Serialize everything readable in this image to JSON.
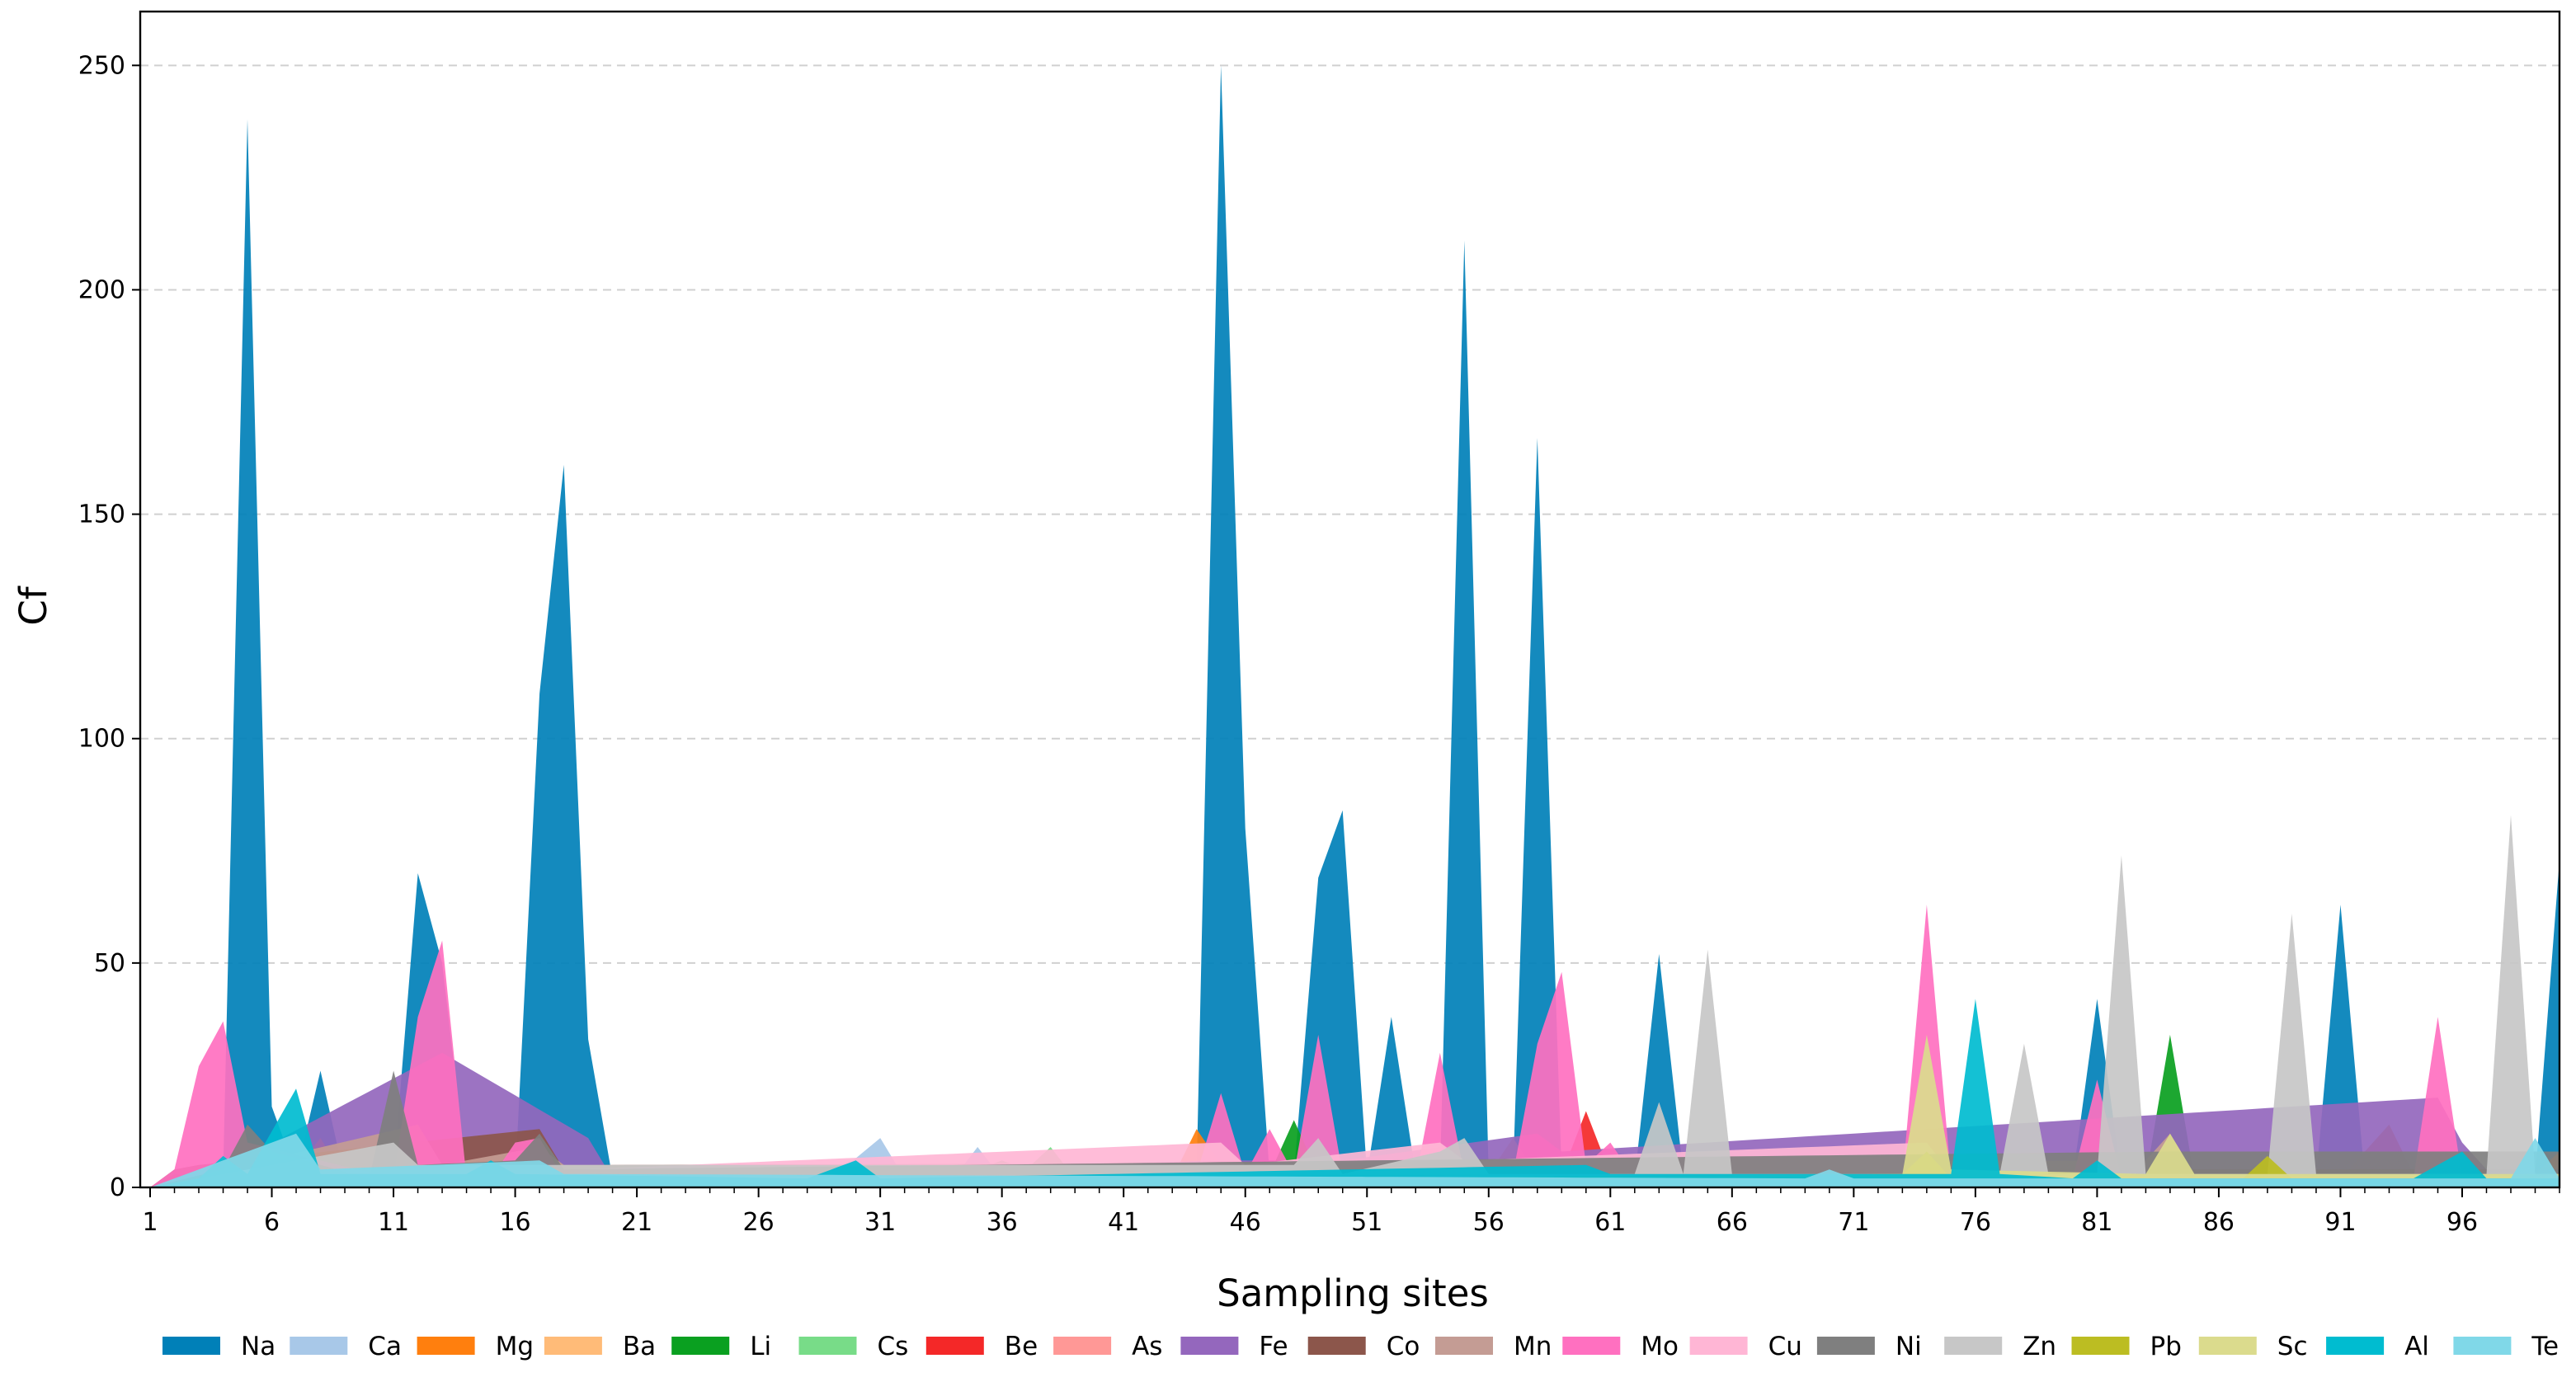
{
  "chart_data": {
    "type": "area",
    "title": "",
    "xlabel": "Sampling sites",
    "ylabel": "Cf",
    "xlim": [
      1,
      100
    ],
    "ylim": [
      0,
      262
    ],
    "x_ticks": [
      1,
      6,
      11,
      16,
      21,
      26,
      31,
      36,
      41,
      46,
      51,
      56,
      61,
      66,
      71,
      76,
      81,
      86,
      91,
      96
    ],
    "y_ticks": [
      0,
      50,
      100,
      150,
      200,
      250
    ],
    "grid": "horizontal dashed",
    "legend_position": "bottom",
    "colors": {
      "Na": "#0080b8",
      "Ca": "#a8c8e8",
      "Mg": "#ff7f0e",
      "Ba": "#ffbb78",
      "Li": "#0aa020",
      "Cs": "#78dc88",
      "Be": "#f42828",
      "As": "#ff9896",
      "Fe": "#9467bd",
      "Co": "#8c564b",
      "Mn": "#c49c94",
      "Mo": "#ff70c0",
      "Cu": "#ffb6d5",
      "Ni": "#7f7f7f",
      "Zn": "#c7c7c7",
      "Pb": "#bcbd22",
      "Sc": "#dbdb8d",
      "Al": "#00bcd0",
      "Te": "#80d8e8"
    },
    "series": [
      {
        "name": "Na",
        "points": [
          [
            1,
            0
          ],
          [
            2,
            3
          ],
          [
            3,
            2
          ],
          [
            4,
            3
          ],
          [
            5,
            238
          ],
          [
            6,
            18
          ],
          [
            7,
            3
          ],
          [
            8,
            26
          ],
          [
            9,
            2
          ],
          [
            10,
            2
          ],
          [
            11,
            3
          ],
          [
            12,
            70
          ],
          [
            13,
            50
          ],
          [
            14,
            3
          ],
          [
            15,
            3
          ],
          [
            16,
            2
          ],
          [
            17,
            110
          ],
          [
            18,
            161
          ],
          [
            19,
            33
          ],
          [
            20,
            2
          ],
          [
            22,
            2
          ],
          [
            44,
            3
          ],
          [
            45,
            250
          ],
          [
            46,
            80
          ],
          [
            47,
            3
          ],
          [
            48,
            3
          ],
          [
            49,
            69
          ],
          [
            50,
            84
          ],
          [
            51,
            3
          ],
          [
            52,
            38
          ],
          [
            53,
            3
          ],
          [
            54,
            3
          ],
          [
            55,
            211
          ],
          [
            56,
            3
          ],
          [
            57,
            3
          ],
          [
            58,
            167
          ],
          [
            59,
            3
          ],
          [
            62,
            2
          ],
          [
            63,
            52
          ],
          [
            64,
            3
          ],
          [
            80,
            2
          ],
          [
            81,
            42
          ],
          [
            82,
            2
          ],
          [
            90,
            2
          ],
          [
            91,
            63
          ],
          [
            92,
            2
          ],
          [
            99,
            2
          ],
          [
            100,
            73
          ]
        ]
      },
      {
        "name": "Ca",
        "points": [
          [
            1,
            0
          ],
          [
            5,
            6
          ],
          [
            29,
            2
          ],
          [
            31,
            11
          ],
          [
            32,
            2
          ],
          [
            33,
            4
          ],
          [
            34,
            2
          ],
          [
            35,
            9
          ],
          [
            36,
            2
          ],
          [
            42,
            2
          ],
          [
            70,
            2
          ],
          [
            72,
            4
          ],
          [
            73,
            2
          ]
        ]
      },
      {
        "name": "Mg",
        "points": [
          [
            1,
            0
          ],
          [
            7,
            4
          ],
          [
            8,
            11
          ],
          [
            9,
            2
          ],
          [
            43,
            2
          ],
          [
            44,
            13
          ],
          [
            45,
            5
          ],
          [
            91,
            2
          ],
          [
            93,
            14
          ],
          [
            94,
            3
          ],
          [
            99,
            3
          ],
          [
            100,
            8
          ]
        ]
      },
      {
        "name": "Ba",
        "points": [
          [
            1,
            0
          ],
          [
            8,
            8
          ],
          [
            9,
            2
          ],
          [
            28,
            2
          ],
          [
            29,
            4
          ],
          [
            30,
            2
          ],
          [
            56,
            3
          ],
          [
            57,
            11
          ],
          [
            58,
            3
          ]
        ]
      },
      {
        "name": "Li",
        "points": [
          [
            1,
            0
          ],
          [
            47,
            3
          ],
          [
            48,
            15
          ],
          [
            49,
            3
          ],
          [
            83,
            2
          ],
          [
            84,
            34
          ],
          [
            85,
            2
          ]
        ]
      },
      {
        "name": "Cs",
        "points": [
          [
            1,
            0
          ],
          [
            34,
            2
          ],
          [
            36,
            6
          ],
          [
            37,
            4
          ],
          [
            38,
            9
          ],
          [
            39,
            2
          ],
          [
            40,
            3
          ],
          [
            41,
            2
          ]
        ]
      },
      {
        "name": "Be",
        "points": [
          [
            1,
            0
          ],
          [
            59,
            3
          ],
          [
            60,
            17
          ],
          [
            61,
            3
          ]
        ]
      },
      {
        "name": "As",
        "points": [
          [
            1,
            0
          ],
          [
            5,
            8
          ],
          [
            6,
            5
          ],
          [
            12,
            8
          ],
          [
            13,
            4
          ],
          [
            17,
            6
          ],
          [
            18,
            4
          ]
        ]
      },
      {
        "name": "Fe",
        "points": [
          [
            1,
            0
          ],
          [
            5,
            7
          ],
          [
            13,
            30
          ],
          [
            19,
            11
          ],
          [
            20,
            2
          ],
          [
            45,
            6
          ],
          [
            50,
            6
          ],
          [
            58,
            12
          ],
          [
            59,
            8
          ],
          [
            95,
            20
          ],
          [
            96,
            10
          ],
          [
            97,
            4
          ]
        ]
      },
      {
        "name": "Co",
        "points": [
          [
            1,
            0
          ],
          [
            2,
            4
          ],
          [
            3,
            5
          ],
          [
            17,
            13
          ],
          [
            18,
            4
          ]
        ]
      },
      {
        "name": "Mn",
        "points": [
          [
            1,
            0
          ],
          [
            12,
            14
          ],
          [
            13,
            5
          ],
          [
            17,
            9
          ],
          [
            18,
            5
          ],
          [
            83,
            6
          ],
          [
            84,
            12
          ],
          [
            85,
            3
          ]
        ]
      },
      {
        "name": "Mo",
        "points": [
          [
            1,
            0
          ],
          [
            2,
            4
          ],
          [
            3,
            27
          ],
          [
            4,
            37
          ],
          [
            5,
            10
          ],
          [
            11,
            2
          ],
          [
            12,
            38
          ],
          [
            13,
            55
          ],
          [
            14,
            2
          ],
          [
            15,
            2
          ],
          [
            16,
            10
          ],
          [
            17,
            11
          ],
          [
            18,
            2
          ],
          [
            44,
            3
          ],
          [
            45,
            21
          ],
          [
            46,
            3
          ],
          [
            47,
            13
          ],
          [
            48,
            3
          ],
          [
            49,
            34
          ],
          [
            50,
            3
          ],
          [
            53,
            2
          ],
          [
            54,
            30
          ],
          [
            55,
            3
          ],
          [
            57,
            3
          ],
          [
            58,
            32
          ],
          [
            59,
            48
          ],
          [
            60,
            5
          ],
          [
            61,
            10
          ],
          [
            62,
            2
          ],
          [
            73,
            2
          ],
          [
            74,
            63
          ],
          [
            75,
            2
          ],
          [
            80,
            2
          ],
          [
            81,
            24
          ],
          [
            82,
            2
          ],
          [
            94,
            2
          ],
          [
            95,
            38
          ],
          [
            96,
            2
          ]
        ]
      },
      {
        "name": "Cu",
        "points": [
          [
            1,
            0
          ],
          [
            45,
            10
          ],
          [
            46,
            5
          ],
          [
            54,
            10
          ],
          [
            55,
            6
          ],
          [
            74,
            10
          ],
          [
            75,
            3
          ]
        ]
      },
      {
        "name": "Ni",
        "points": [
          [
            1,
            0
          ],
          [
            4,
            4
          ],
          [
            5,
            14
          ],
          [
            6,
            8
          ],
          [
            10,
            2
          ],
          [
            11,
            26
          ],
          [
            12,
            5
          ],
          [
            16,
            6
          ],
          [
            17,
            12
          ],
          [
            18,
            4
          ],
          [
            84,
            8
          ]
        ]
      },
      {
        "name": "Zn",
        "points": [
          [
            1,
            0
          ],
          [
            11,
            10
          ],
          [
            12,
            5
          ],
          [
            48,
            5
          ],
          [
            49,
            11
          ],
          [
            50,
            3
          ],
          [
            54,
            8
          ],
          [
            55,
            11
          ],
          [
            56,
            3
          ],
          [
            62,
            3
          ],
          [
            63,
            19
          ],
          [
            64,
            3
          ],
          [
            65,
            53
          ],
          [
            66,
            3
          ],
          [
            77,
            3
          ],
          [
            78,
            32
          ],
          [
            79,
            3
          ],
          [
            81,
            3
          ],
          [
            82,
            74
          ],
          [
            83,
            3
          ],
          [
            88,
            3
          ],
          [
            89,
            61
          ],
          [
            90,
            3
          ],
          [
            97,
            3
          ],
          [
            98,
            83
          ],
          [
            99,
            3
          ]
        ]
      },
      {
        "name": "Pb",
        "points": [
          [
            1,
            0
          ],
          [
            73,
            3
          ],
          [
            74,
            8
          ],
          [
            75,
            2
          ],
          [
            87,
            2
          ],
          [
            88,
            7
          ],
          [
            89,
            2
          ]
        ]
      },
      {
        "name": "Sc",
        "points": [
          [
            1,
            0
          ],
          [
            73,
            3
          ],
          [
            74,
            34
          ],
          [
            75,
            4
          ],
          [
            83,
            3
          ],
          [
            84,
            12
          ],
          [
            85,
            3
          ]
        ]
      },
      {
        "name": "Al",
        "points": [
          [
            1,
            0
          ],
          [
            3,
            2
          ],
          [
            4,
            7
          ],
          [
            5,
            3
          ],
          [
            7,
            22
          ],
          [
            8,
            3
          ],
          [
            14,
            3
          ],
          [
            15,
            6
          ],
          [
            16,
            3
          ],
          [
            28,
            2
          ],
          [
            30,
            6
          ],
          [
            31,
            2
          ],
          [
            60,
            5
          ],
          [
            61,
            3
          ],
          [
            75,
            3
          ],
          [
            76,
            42
          ],
          [
            77,
            3
          ],
          [
            80,
            2
          ],
          [
            81,
            6
          ],
          [
            82,
            2
          ],
          [
            94,
            2
          ],
          [
            96,
            8
          ],
          [
            97,
            2
          ]
        ]
      },
      {
        "name": "Te",
        "points": [
          [
            1,
            0
          ],
          [
            7,
            12
          ],
          [
            8,
            4
          ],
          [
            17,
            6
          ],
          [
            18,
            3
          ],
          [
            69,
            2
          ],
          [
            70,
            4
          ],
          [
            71,
            2
          ],
          [
            98,
            2
          ],
          [
            99,
            11
          ],
          [
            100,
            2
          ]
        ]
      }
    ]
  }
}
